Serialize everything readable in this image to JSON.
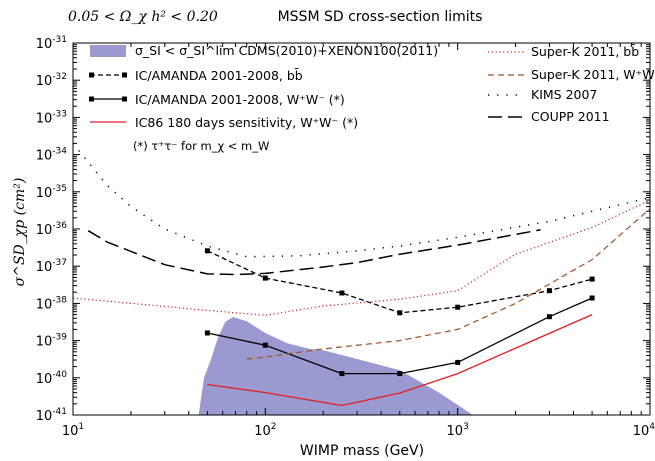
{
  "chart_data": {
    "type": "line",
    "title": "MSSM SD cross-section limits",
    "subtitle": "0.05 < Ω_χ h² < 0.20",
    "xlabel": "WIMP mass (GeV)",
    "ylabel": "σ^SD_χp (cm²)",
    "x_scale": "log",
    "y_scale": "log",
    "xlim": [
      10,
      10000
    ],
    "ylim": [
      1e-41,
      1e-31
    ],
    "x_ticks": [
      {
        "value": 10,
        "base": "10",
        "exp": "1"
      },
      {
        "value": 100,
        "base": "10",
        "exp": "2"
      },
      {
        "value": 1000,
        "base": "10",
        "exp": "3"
      },
      {
        "value": 10000,
        "base": "10",
        "exp": "4"
      }
    ],
    "y_ticks": [
      {
        "value": 1e-41,
        "base": "10",
        "exp": "-41"
      },
      {
        "value": 1e-40,
        "base": "10",
        "exp": "-40"
      },
      {
        "value": 1e-39,
        "base": "10",
        "exp": "-39"
      },
      {
        "value": 1e-38,
        "base": "10",
        "exp": "-38"
      },
      {
        "value": 1e-37,
        "base": "10",
        "exp": "-37"
      },
      {
        "value": 1e-36,
        "base": "10",
        "exp": "-36"
      },
      {
        "value": 1e-35,
        "base": "10",
        "exp": "-35"
      },
      {
        "value": 1e-34,
        "base": "10",
        "exp": "-34"
      },
      {
        "value": 1e-33,
        "base": "10",
        "exp": "-33"
      },
      {
        "value": 1e-32,
        "base": "10",
        "exp": "-32"
      },
      {
        "value": 1e-31,
        "base": "10",
        "exp": "-31"
      }
    ],
    "shaded_region": {
      "name": "σ_SI < σ_SI^lim CDMS(2010)+XENON100(2011)",
      "color": "#9a9ad0",
      "upper": [
        [
          45,
          1e-41
        ],
        [
          48,
          1e-40
        ],
        [
          52,
          3e-40
        ],
        [
          57,
          1.3e-39
        ],
        [
          62,
          3.2e-39
        ],
        [
          68,
          4.3e-39
        ],
        [
          80,
          3.3e-39
        ],
        [
          100,
          1.6e-39
        ],
        [
          130,
          8.5e-40
        ],
        [
          170,
          6e-40
        ],
        [
          200,
          5.5e-40
        ],
        [
          300,
          3.2e-40
        ],
        [
          500,
          1.6e-40
        ],
        [
          800,
          4e-41
        ],
        [
          1200,
          1e-41
        ]
      ]
    },
    "series": [
      {
        "name": "IC/AMANDA 2001-2008, bb̄",
        "style": "dashed-markers",
        "color": "#000000",
        "points": [
          [
            50,
            2.6e-37
          ],
          [
            100,
            4.8e-38
          ],
          [
            250,
            1.9e-38
          ],
          [
            500,
            5.6e-39
          ],
          [
            1000,
            7.9e-39
          ],
          [
            3000,
            2.2e-38
          ],
          [
            5000,
            4.5e-38
          ]
        ]
      },
      {
        "name": "IC/AMANDA 2001-2008, W⁺W⁻ (*)",
        "style": "solid-markers",
        "color": "#000000",
        "points": [
          [
            50,
            1.6e-39
          ],
          [
            100,
            7.5e-40
          ],
          [
            250,
            1.3e-40
          ],
          [
            500,
            1.3e-40
          ],
          [
            1000,
            2.6e-40
          ],
          [
            3000,
            4.4e-39
          ],
          [
            5000,
            1.4e-38
          ]
        ]
      },
      {
        "name": "IC86 180 days sensitivity, W⁺W⁻ (*)",
        "style": "solid",
        "color": "#e02020",
        "points": [
          [
            50,
            6.6e-41
          ],
          [
            100,
            4e-41
          ],
          [
            250,
            1.8e-41
          ],
          [
            500,
            3.9e-41
          ],
          [
            1000,
            1.3e-40
          ],
          [
            5000,
            5e-39
          ]
        ]
      },
      {
        "name": "Super-K 2011, bb̄",
        "style": "dotted",
        "color": "#c82020",
        "points": [
          [
            10,
            1.4e-38
          ],
          [
            50,
            6.5e-39
          ],
          [
            100,
            4.8e-39
          ],
          [
            200,
            8.5e-39
          ],
          [
            500,
            1.3e-38
          ],
          [
            1000,
            2.2e-38
          ],
          [
            2000,
            2.1e-37
          ],
          [
            5000,
            1.1e-36
          ],
          [
            10000,
            6e-36
          ]
        ]
      },
      {
        "name": "Super-K 2011, W⁺W⁻",
        "style": "dashed",
        "color": "#a05020",
        "points": [
          [
            80,
            3.2e-40
          ],
          [
            100,
            3.6e-40
          ],
          [
            200,
            6e-40
          ],
          [
            500,
            1e-39
          ],
          [
            1000,
            2e-39
          ],
          [
            2000,
            1e-38
          ],
          [
            5000,
            1.5e-37
          ],
          [
            10000,
            3.5e-36
          ]
        ]
      },
      {
        "name": "KIMS 2007",
        "style": "dotted-sparse",
        "color": "#000000",
        "points": [
          [
            10,
            2e-34
          ],
          [
            15,
            1.5e-35
          ],
          [
            20,
            4e-36
          ],
          [
            30,
            1e-36
          ],
          [
            50,
            3.5e-37
          ],
          [
            80,
            1.8e-37
          ],
          [
            150,
            1.9e-37
          ],
          [
            300,
            2.6e-37
          ],
          [
            500,
            3.5e-37
          ],
          [
            1000,
            6e-37
          ],
          [
            3000,
            1.6e-36
          ],
          [
            10000,
            7e-36
          ]
        ]
      },
      {
        "name": "COUPP 2011",
        "style": "longdash",
        "color": "#000000",
        "points": [
          [
            12,
            9e-37
          ],
          [
            15,
            4.5e-37
          ],
          [
            20,
            2.5e-37
          ],
          [
            30,
            1.1e-37
          ],
          [
            50,
            6.2e-38
          ],
          [
            70,
            6e-38
          ],
          [
            100,
            6.4e-38
          ],
          [
            200,
            9.5e-38
          ],
          [
            300,
            1.25e-37
          ],
          [
            500,
            2.1e-37
          ],
          [
            1000,
            3.7e-37
          ],
          [
            2700,
            9.5e-37
          ]
        ]
      }
    ],
    "legend_note": "(*) τ⁺τ⁻ for m_χ < m_W",
    "legend_placement": "top",
    "grid": false
  }
}
